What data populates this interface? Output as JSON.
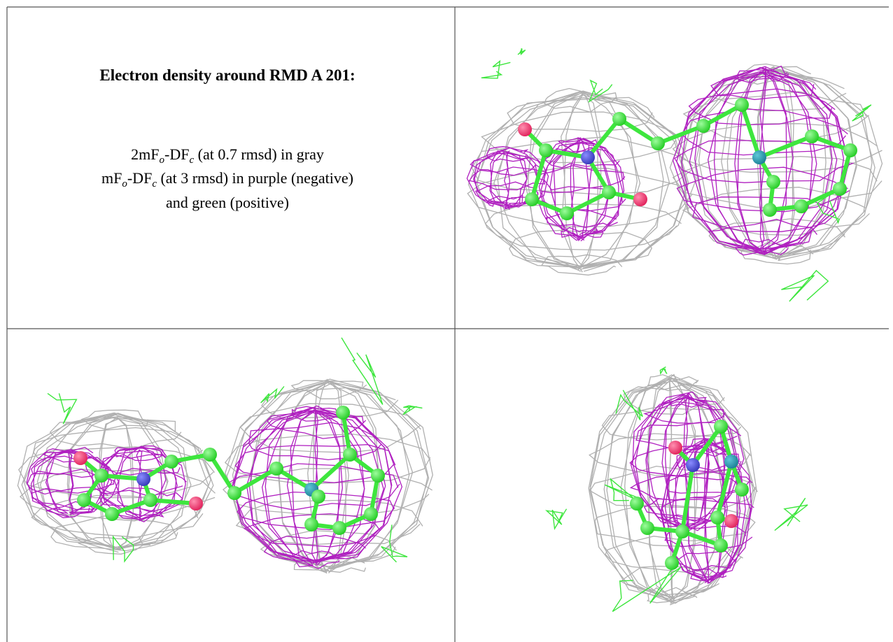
{
  "title": "Electron density around RMD A 201:",
  "caption": [
    [
      "2mF",
      "o",
      "-DF",
      "c",
      " (at 0.7 rmsd) in gray"
    ],
    [
      "mF",
      "o",
      "-DF",
      "c",
      " (at 3 rmsd) in purple (negative)"
    ],
    [
      "and green (positive)"
    ]
  ]
}
